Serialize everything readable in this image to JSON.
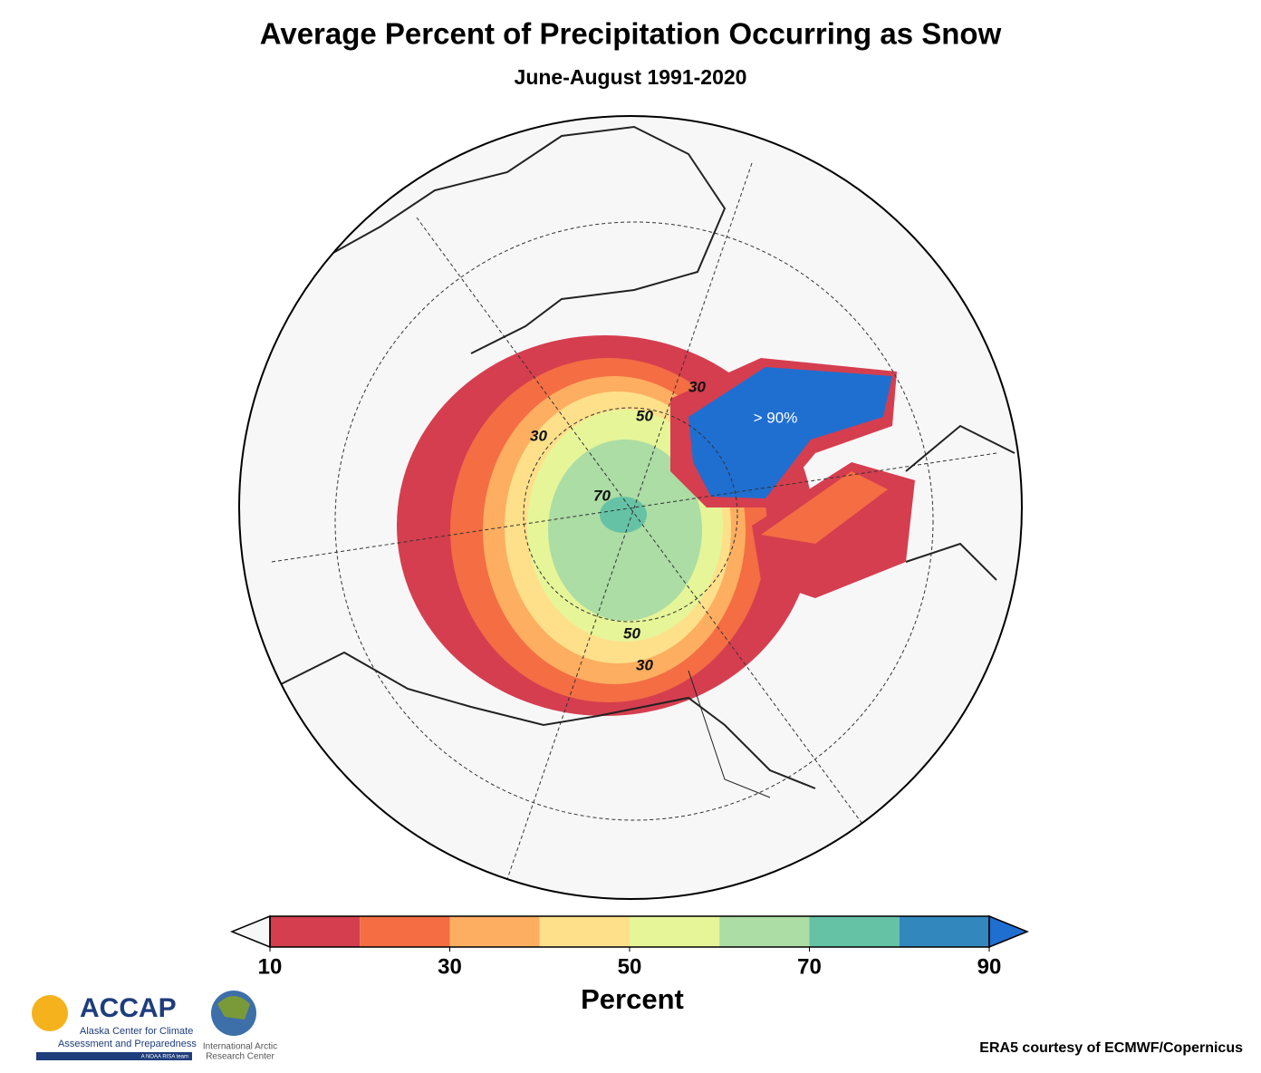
{
  "title": "Average Percent of Precipitation Occurring as Snow",
  "subtitle": "June-August 1991-2020",
  "map": {
    "contour_labels": [
      "30",
      "30",
      "30",
      "50",
      "50",
      "70"
    ],
    "annotation": "> 90%"
  },
  "colorbar": {
    "levels": [
      10,
      20,
      30,
      40,
      50,
      60,
      70,
      80,
      90
    ],
    "colors": [
      "#d53e4f",
      "#f46d43",
      "#fdae61",
      "#fee08b",
      "#e6f598",
      "#abdda4",
      "#66c2a5",
      "#3288bd"
    ],
    "under_color": "#f7f7f7",
    "over_color": "#1f6fd1",
    "ticks": [
      10,
      30,
      50,
      70,
      90
    ],
    "label": "Percent"
  },
  "logos": {
    "accap": [
      "ACCAP",
      "Alaska Center for Climate",
      "Assessment and Preparedness",
      "A NOAA RISA team"
    ],
    "iarc": [
      "International Arctic",
      "Research Center"
    ]
  },
  "credit": "ERA5 courtesy of ECMWF/Copernicus"
}
